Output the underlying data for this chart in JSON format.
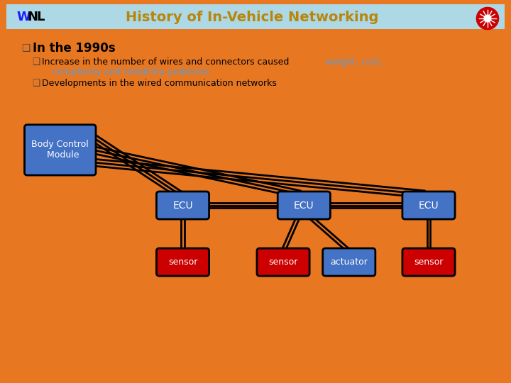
{
  "title": "History of In-Vehicle Networking",
  "title_color": "#b8860b",
  "border_color": "#e87722",
  "header_bar_color": "#add8e6",
  "slide_bg": "#ffffff",
  "bullet1": "In the 1990s",
  "bullet2_black": "Increase in the number of wires and connectors caused ",
  "bullet2_blue": "weight, cost,",
  "bullet2_blue2": "complexity and reliability problems",
  "bullet2_highlight_color": "#5b9bd5",
  "bullet3": "Developments in the wired communication networks",
  "box_bcm_color": "#4472c4",
  "box_ecu_color": "#4472c4",
  "box_sensor_color": "#cc0000",
  "box_actuator_color": "#4472c4",
  "box_text_color": "#ffffff",
  "line_color": "#000000"
}
